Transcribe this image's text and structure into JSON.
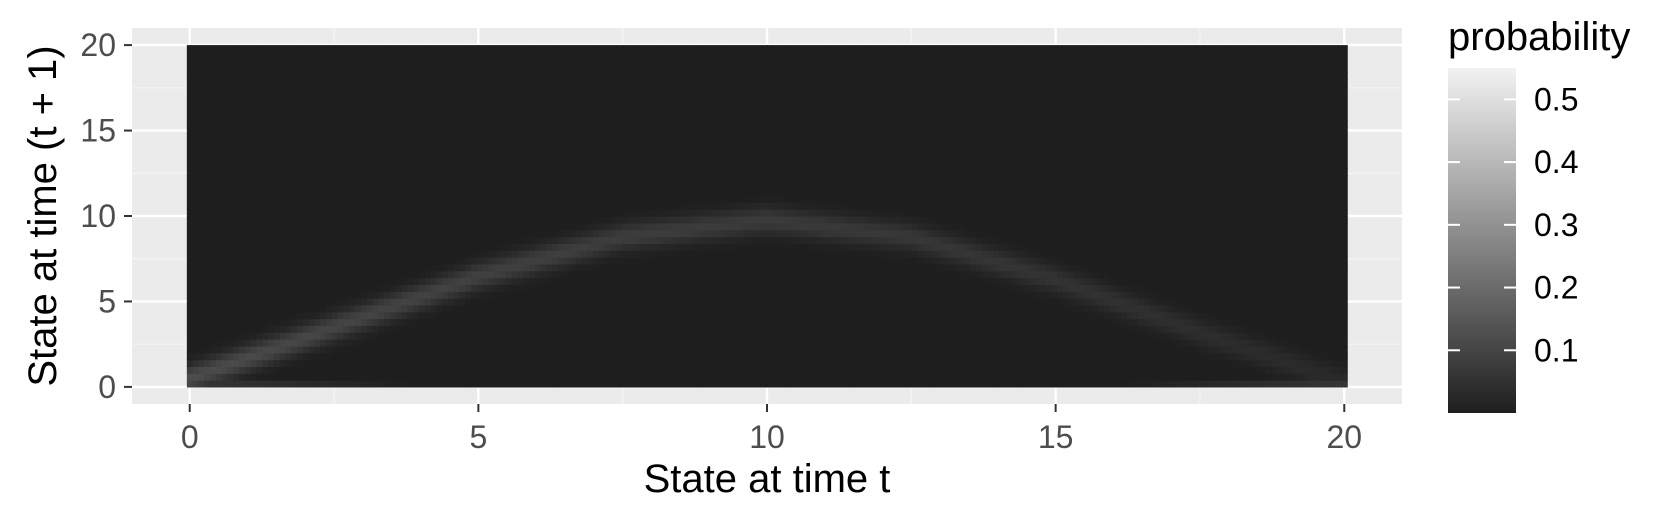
{
  "chart_data": {
    "type": "heatmap",
    "title": "",
    "xlabel": "State at time t",
    "ylabel": "State at time (t + 1)",
    "x_range": [
      0,
      20
    ],
    "y_range": [
      0,
      20
    ],
    "xlim": [
      -1.0,
      21.0
    ],
    "ylim": [
      -1.0,
      21.0
    ],
    "x_ticks": [
      0,
      5,
      10,
      15,
      20
    ],
    "y_ticks": [
      0,
      5,
      10,
      15,
      20
    ],
    "grid": true,
    "legend": {
      "title": "probability",
      "position": "right",
      "ticks": [
        0.1,
        0.2,
        0.3,
        0.4,
        0.5
      ],
      "range": [
        0.0,
        0.55
      ],
      "low_color": "#1e1e1e",
      "high_color": "#f2f2f2"
    },
    "ridge": {
      "description_points": [
        {
          "x": 0,
          "y": 0.5,
          "p": 0.12
        },
        {
          "x": 2.5,
          "y": 3.5,
          "p": 0.1
        },
        {
          "x": 5,
          "y": 6.5,
          "p": 0.09
        },
        {
          "x": 7.5,
          "y": 8.8,
          "p": 0.08
        },
        {
          "x": 10,
          "y": 9.8,
          "p": 0.075
        },
        {
          "x": 12.5,
          "y": 8.8,
          "p": 0.065
        },
        {
          "x": 15,
          "y": 6.3,
          "p": 0.055
        },
        {
          "x": 17.5,
          "y": 3.2,
          "p": 0.04
        },
        {
          "x": 20,
          "y": 0.3,
          "p": 0.03
        }
      ],
      "bottom_edge_p": 0.06
    },
    "colors": {
      "panel_bg": "#ebebeb",
      "grid_major": "#ffffff",
      "grid_minor": "#f5f5f5",
      "tick_text": "#4d4d4d",
      "axis_title": "#000000"
    }
  }
}
